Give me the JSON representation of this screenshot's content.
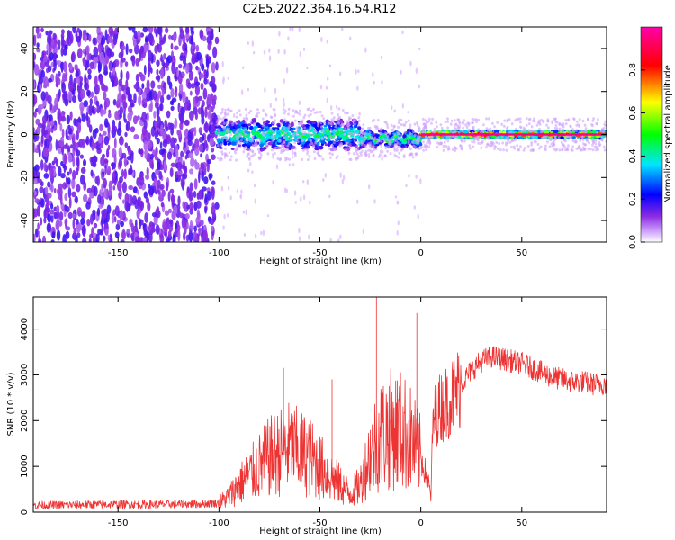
{
  "figure": {
    "title": "C2E5.2022.364.16.54.R12"
  },
  "chart_data": [
    {
      "type": "heatmap",
      "xlabel": "Height of straight line (km)",
      "ylabel": "Frequency (Hz)",
      "xlim": [
        -192,
        92
      ],
      "ylim": [
        -50,
        50
      ],
      "xticks": [
        -150,
        -100,
        -50,
        0,
        50
      ],
      "yticks": [
        -40,
        -20,
        0,
        20,
        40
      ],
      "colorbar": {
        "label": "Normalized spectral amplitude",
        "range": [
          0.0,
          1.0
        ],
        "ticks": [
          0.0,
          0.2,
          0.4,
          0.6,
          0.8
        ],
        "colormap": "rainbow (purple-blue-cyan-green-yellow-red-magenta)",
        "stops": [
          "#ffffff",
          "#8b2be2",
          "#0000ff",
          "#00e5ff",
          "#00ff00",
          "#ffff00",
          "#ff0000",
          "#ff00aa"
        ]
      },
      "regions": [
        {
          "x_range": [
            -192,
            -101
          ],
          "description": "broadband noise across all frequencies",
          "amplitude": 0.1
        },
        {
          "x_range": [
            -101,
            -30
          ],
          "center_freq": 0,
          "freq_halfwidth": 6,
          "amplitude": 0.45
        },
        {
          "x_range": [
            -30,
            0
          ],
          "center_freq": -2,
          "freq_halfwidth": 3,
          "amplitude": 0.5
        },
        {
          "x_range": [
            0,
            92
          ],
          "center_freq": 0,
          "freq_halfwidth": 1.5,
          "amplitude": 0.95
        }
      ]
    },
    {
      "type": "line",
      "xlabel": "Height of straight line (km)",
      "ylabel": "SNR (10 * v/v)",
      "xlim": [
        -192,
        92
      ],
      "ylim": [
        0,
        4700
      ],
      "xticks": [
        -150,
        -100,
        -50,
        0,
        50
      ],
      "yticks": [
        0,
        1000,
        2000,
        3000,
        4000
      ],
      "series": [
        {
          "color": "#ee3333",
          "x": [
            -192,
            -170,
            -150,
            -130,
            -110,
            -100,
            -95,
            -90,
            -85,
            -80,
            -75,
            -70,
            -65,
            -60,
            -55,
            -50,
            -45,
            -40,
            -35,
            -30,
            -25,
            -20,
            -15,
            -10,
            -5,
            0,
            2,
            4,
            5,
            6,
            8,
            10,
            15,
            20,
            25,
            30,
            35,
            40,
            45,
            50,
            55,
            60,
            65,
            70,
            75,
            80,
            85,
            92
          ],
          "y": [
            150,
            160,
            170,
            170,
            180,
            200,
            350,
            600,
            800,
            1000,
            1200,
            1300,
            1400,
            1300,
            1200,
            1000,
            800,
            600,
            400,
            600,
            1300,
            1700,
            1800,
            1800,
            1600,
            1200,
            900,
            600,
            300,
            2000,
            2200,
            2300,
            2500,
            2800,
            3100,
            3300,
            3400,
            3350,
            3300,
            3250,
            3150,
            3050,
            2950,
            2900,
            2850,
            2850,
            2800,
            2800
          ]
        }
      ]
    }
  ]
}
